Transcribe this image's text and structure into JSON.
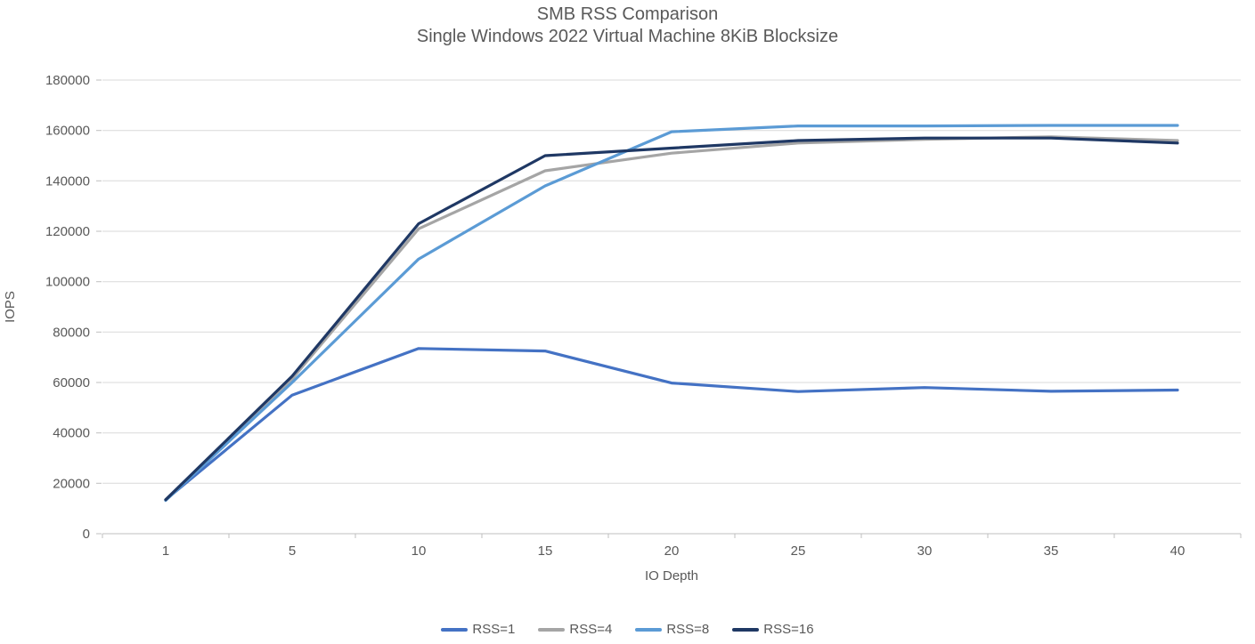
{
  "title": {
    "line1": "SMB RSS Comparison",
    "line2": "Single Windows 2022 Virtual Machine 8KiB Blocksize"
  },
  "colors": {
    "text": "#595959",
    "gridline": "#D9D9D9",
    "axis": "#BFBFBF",
    "background": "#FFFFFF"
  },
  "chart_data": {
    "type": "line",
    "title": "SMB RSS Comparison",
    "subtitle": "Single Windows 2022 Virtual Machine 8KiB Blocksize",
    "x": [
      1,
      5,
      10,
      15,
      20,
      25,
      30,
      35,
      40
    ],
    "xlabel": "IO Depth",
    "ylabel": "IOPS",
    "ylim": [
      0,
      180000
    ],
    "ytick_step": 20000,
    "grid": true,
    "legend_position": "bottom",
    "series": [
      {
        "name": "RSS=1",
        "color": "#4472C4",
        "values": [
          13500,
          55000,
          73500,
          72500,
          59800,
          56400,
          58000,
          56500,
          57000
        ]
      },
      {
        "name": "RSS=4",
        "color": "#A5A5A5",
        "values": [
          13500,
          61500,
          121000,
          144000,
          151000,
          155000,
          156500,
          157500,
          156000
        ]
      },
      {
        "name": "RSS=8",
        "color": "#5B9BD5",
        "values": [
          13200,
          60000,
          109000,
          138000,
          159500,
          161800,
          161800,
          162000,
          162000
        ]
      },
      {
        "name": "RSS=16",
        "color": "#1F3864",
        "values": [
          13500,
          62500,
          123000,
          150000,
          153000,
          156000,
          157000,
          157000,
          155000
        ]
      }
    ]
  }
}
